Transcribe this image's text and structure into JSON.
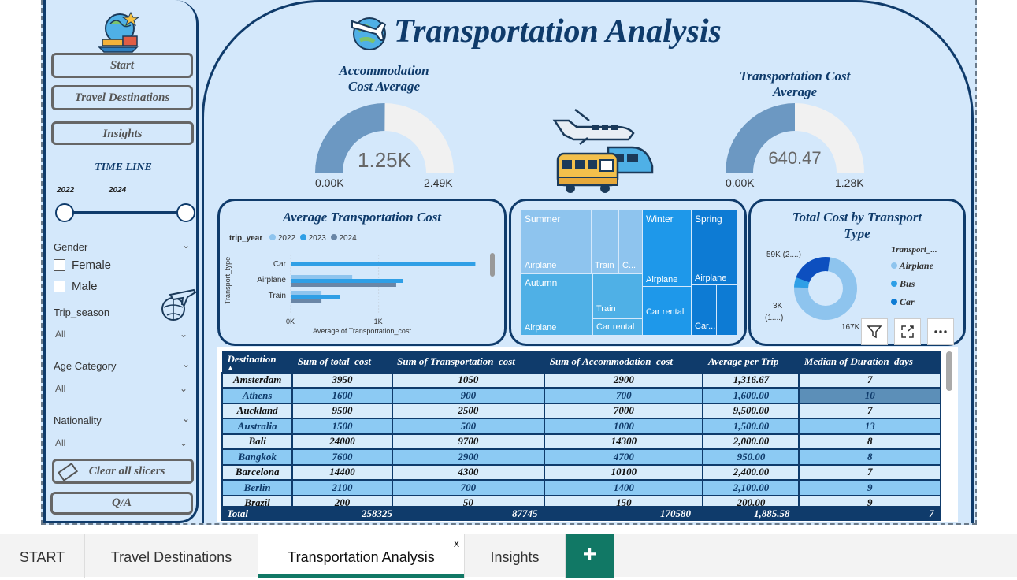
{
  "title": "Transportation Analysis",
  "sidebar": {
    "buttons": [
      "Start",
      "Travel Destinations",
      "Insights"
    ],
    "timeline_title": "TIME LINE",
    "year_start": "2022",
    "year_end": "2024",
    "gender_label": "Gender",
    "gender_options": [
      "Female",
      "Male"
    ],
    "trip_season_label": "Trip_season",
    "trip_season_value": "All",
    "age_label": "Age Category",
    "age_value": "All",
    "nationality_label": "Nationality",
    "nationality_value": "All",
    "clear_label": "Clear all slicers",
    "qa_label": "Q/A"
  },
  "kpis": {
    "accommodation": {
      "title_line1": "Accommodation",
      "title_line2": "Cost Average",
      "value": "1.25K",
      "min": "0.00K",
      "max": "2.49K",
      "fraction": 0.502
    },
    "transport": {
      "title_line1": "Transportation Cost",
      "title_line2": "Average",
      "value": "640.47",
      "min": "0.00K",
      "max": "1.28K",
      "fraction": 0.5
    }
  },
  "avg_chart": {
    "title": "Average Transportation Cost",
    "legend_title": "trip_year",
    "legend": [
      {
        "name": "2022",
        "color": "#8ec4ee"
      },
      {
        "name": "2023",
        "color": "#2f9fe6"
      },
      {
        "name": "2024",
        "color": "#6a86a6"
      }
    ],
    "ylabel": "Transport_type",
    "xlabel": "Average of Transportation_cost",
    "xticks": [
      "0K",
      "1K"
    ]
  },
  "treemap": {
    "seasons": [
      "Summer",
      "Winter",
      "Spring",
      "Autumn"
    ],
    "labels": [
      "Airplane",
      "Train",
      "C...",
      "Airplane",
      "Train",
      "Car rental",
      "Airplane",
      "Car rental",
      "Airplane",
      "Car..."
    ]
  },
  "donut": {
    "title_line1": "Total Cost by Transport",
    "title_line2": "Type",
    "legend_title": "Transport_...",
    "legend": [
      {
        "name": "Airplane",
        "color": "#8ec4ee"
      },
      {
        "name": "Bus",
        "color": "#2f9fe6"
      },
      {
        "name": "Car",
        "color": "#0d7bd4"
      }
    ],
    "labels": [
      "59K (2....)",
      "3K",
      "(1....)",
      "167K"
    ]
  },
  "table": {
    "headers": [
      "Destination",
      "Sum of total_cost",
      "Sum of Transportation_cost",
      "Sum of Accommodation_cost",
      "Average per Trip",
      "Median of Duration_days"
    ],
    "rows": [
      [
        "Amsterdam",
        "3950",
        "1050",
        "2900",
        "1,316.67",
        "7"
      ],
      [
        "Athens",
        "1600",
        "900",
        "700",
        "1,600.00",
        "10"
      ],
      [
        "Auckland",
        "9500",
        "2500",
        "7000",
        "9,500.00",
        "7"
      ],
      [
        "Australia",
        "1500",
        "500",
        "1000",
        "1,500.00",
        "13"
      ],
      [
        "Bali",
        "24000",
        "9700",
        "14300",
        "2,000.00",
        "8"
      ],
      [
        "Bangkok",
        "7600",
        "2900",
        "4700",
        "950.00",
        "8"
      ],
      [
        "Barcelona",
        "14400",
        "4300",
        "10100",
        "2,400.00",
        "7"
      ],
      [
        "Berlin",
        "2100",
        "700",
        "1400",
        "2,100.00",
        "9"
      ],
      [
        "Brazil",
        "200",
        "50",
        "150",
        "200.00",
        "9"
      ]
    ],
    "total": [
      "Total",
      "258325",
      "87745",
      "170580",
      "1,885.58",
      "7"
    ]
  },
  "tabs": [
    "START",
    "Travel Destinations",
    "Transportation Analysis",
    "Insights"
  ],
  "tab_close": "x",
  "add_tab": "+",
  "chart_data": {
    "type": "bar",
    "title": "Average Transportation Cost",
    "xlabel": "Average of Transportation_cost",
    "ylabel": "Transport_type",
    "categories": [
      "Car",
      "Airplane",
      "Train"
    ],
    "series": [
      {
        "name": "2022",
        "values": [
          null,
          700,
          350
        ]
      },
      {
        "name": "2023",
        "values": [
          2100,
          1280,
          560
        ]
      },
      {
        "name": "2024",
        "values": [
          null,
          1200,
          350
        ]
      }
    ],
    "xlim": [
      0,
      2150
    ]
  }
}
